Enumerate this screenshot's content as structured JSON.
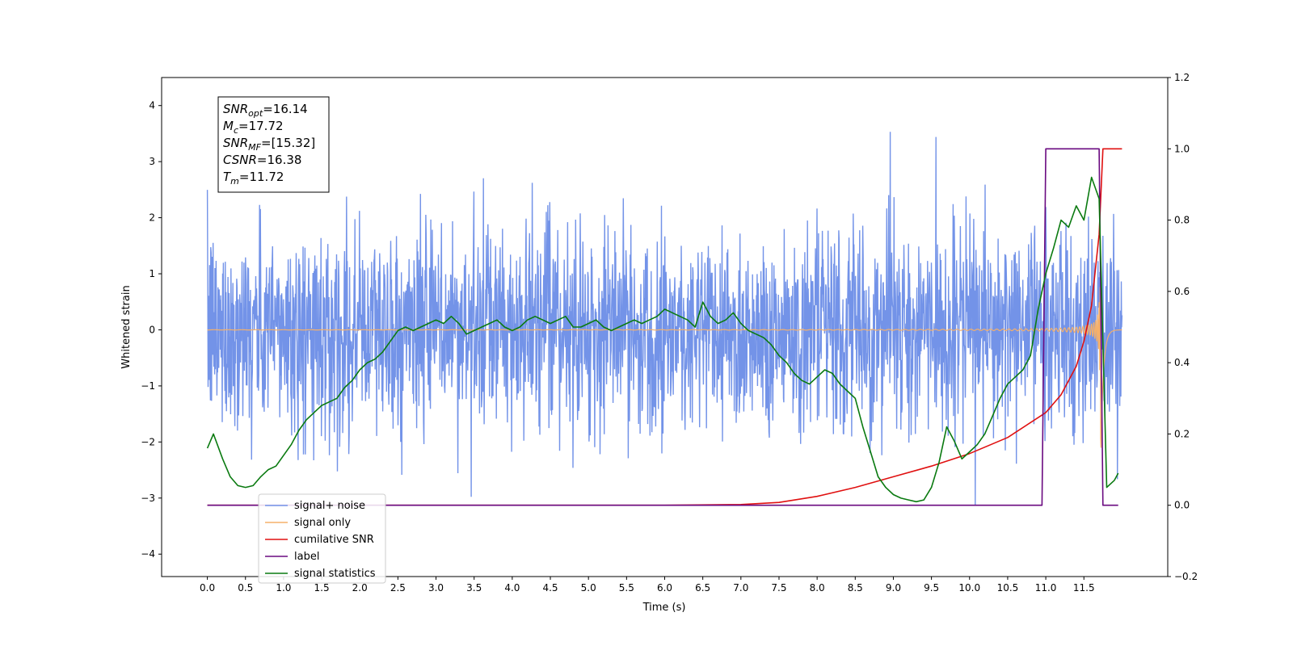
{
  "chart_data": {
    "type": "line",
    "xlabel": "Time (s)",
    "ylabel": "Whitened strain",
    "xlim": [
      -0.6,
      12.6
    ],
    "ylim": [
      -4.4,
      4.5
    ],
    "ylim_right": [
      -0.2,
      1.2
    ],
    "x_ticks": [
      "0.0",
      "0.5",
      "1.0",
      "1.5",
      "2.0",
      "2.5",
      "3.0",
      "3.5",
      "4.0",
      "4.5",
      "5.0",
      "5.5",
      "6.0",
      "6.5",
      "7.0",
      "7.5",
      "8.0",
      "8.5",
      "9.0",
      "9.5",
      "10.0",
      "10.5",
      "11.0",
      "11.5"
    ],
    "y_ticks": [
      "−4",
      "−3",
      "−2",
      "−1",
      "0",
      "1",
      "2",
      "3",
      "4"
    ],
    "y_ticks_right": [
      "−0.2",
      "0.0",
      "0.2",
      "0.4",
      "0.6",
      "0.8",
      "1.0",
      "1.2"
    ],
    "grid": false,
    "legend_position": "lower-left",
    "annotation": {
      "lines": [
        {
          "main": "SNR",
          "sub": "opt",
          "value": "=16.14"
        },
        {
          "main": "M",
          "sub": "c",
          "value": "=17.72"
        },
        {
          "main": "SNR",
          "sub": "MF",
          "value": "=[15.32]"
        },
        {
          "main": "CSNR",
          "sub": "",
          "value": "=16.38"
        },
        {
          "main": "T",
          "sub": "m",
          "value": "=11.72"
        }
      ]
    },
    "series": [
      {
        "name": "signal+ noise",
        "color": "#7393e8",
        "axis": "left",
        "t_start": 0.0,
        "t_end": 12.0,
        "sigma": 0.9,
        "envelope_peak": 2.4,
        "merger_time": 11.72
      },
      {
        "name": "signal only",
        "color": "#f5b06a",
        "axis": "left",
        "t_start": 0.0,
        "t_end": 12.0,
        "envelope_peak": 2.4,
        "merger_time": 11.72
      },
      {
        "name": "cumilative SNR",
        "color": "#e01010",
        "axis": "right",
        "x": [
          0.0,
          6.0,
          7.0,
          7.5,
          8.0,
          8.5,
          9.0,
          9.5,
          10.0,
          10.5,
          11.0,
          11.2,
          11.4,
          11.5,
          11.6,
          11.7,
          11.75,
          11.8,
          12.0
        ],
        "y": [
          0.0,
          0.0,
          0.002,
          0.008,
          0.025,
          0.05,
          0.08,
          0.11,
          0.145,
          0.19,
          0.26,
          0.31,
          0.39,
          0.46,
          0.56,
          0.76,
          1.0,
          1.0,
          1.0
        ]
      },
      {
        "name": "label",
        "color": "#6a0a80",
        "axis": "right",
        "x": [
          0.0,
          10.95,
          11.0,
          11.7,
          11.75,
          11.95
        ],
        "y": [
          0.0,
          0.0,
          1.0,
          1.0,
          0.0,
          0.0
        ]
      },
      {
        "name": "signal statistics",
        "color": "#0a7a10",
        "axis": "right",
        "x": [
          0.0,
          0.08,
          0.2,
          0.3,
          0.4,
          0.5,
          0.6,
          0.7,
          0.8,
          0.9,
          1.0,
          1.1,
          1.2,
          1.3,
          1.4,
          1.5,
          1.6,
          1.7,
          1.8,
          1.9,
          2.0,
          2.1,
          2.2,
          2.3,
          2.4,
          2.5,
          2.6,
          2.7,
          2.8,
          2.9,
          3.0,
          3.1,
          3.2,
          3.3,
          3.4,
          3.5,
          3.6,
          3.7,
          3.8,
          3.9,
          4.0,
          4.1,
          4.2,
          4.3,
          4.4,
          4.5,
          4.6,
          4.7,
          4.8,
          4.9,
          5.0,
          5.1,
          5.2,
          5.3,
          5.4,
          5.5,
          5.6,
          5.7,
          5.8,
          5.9,
          6.0,
          6.1,
          6.2,
          6.3,
          6.4,
          6.5,
          6.6,
          6.7,
          6.8,
          6.9,
          7.0,
          7.1,
          7.2,
          7.3,
          7.4,
          7.5,
          7.6,
          7.7,
          7.8,
          7.9,
          8.0,
          8.1,
          8.2,
          8.3,
          8.4,
          8.5,
          8.6,
          8.7,
          8.8,
          8.9,
          9.0,
          9.1,
          9.2,
          9.3,
          9.4,
          9.5,
          9.6,
          9.7,
          9.8,
          9.9,
          10.0,
          10.1,
          10.2,
          10.3,
          10.4,
          10.5,
          10.6,
          10.7,
          10.8,
          10.9,
          11.0,
          11.1,
          11.2,
          11.3,
          11.4,
          11.5,
          11.6,
          11.7,
          11.8,
          11.9,
          11.95
        ],
        "y": [
          0.16,
          0.2,
          0.13,
          0.08,
          0.055,
          0.05,
          0.055,
          0.08,
          0.1,
          0.11,
          0.14,
          0.17,
          0.21,
          0.24,
          0.26,
          0.28,
          0.29,
          0.3,
          0.33,
          0.35,
          0.38,
          0.4,
          0.41,
          0.43,
          0.46,
          0.49,
          0.5,
          0.49,
          0.5,
          0.51,
          0.52,
          0.51,
          0.53,
          0.51,
          0.48,
          0.49,
          0.5,
          0.51,
          0.52,
          0.5,
          0.49,
          0.5,
          0.52,
          0.53,
          0.52,
          0.51,
          0.52,
          0.53,
          0.5,
          0.5,
          0.51,
          0.52,
          0.5,
          0.49,
          0.5,
          0.51,
          0.52,
          0.51,
          0.52,
          0.53,
          0.55,
          0.54,
          0.53,
          0.52,
          0.5,
          0.57,
          0.53,
          0.51,
          0.52,
          0.54,
          0.51,
          0.49,
          0.48,
          0.47,
          0.45,
          0.42,
          0.4,
          0.37,
          0.35,
          0.34,
          0.36,
          0.38,
          0.37,
          0.34,
          0.32,
          0.3,
          0.22,
          0.15,
          0.08,
          0.05,
          0.03,
          0.02,
          0.015,
          0.01,
          0.015,
          0.05,
          0.12,
          0.22,
          0.18,
          0.13,
          0.15,
          0.17,
          0.2,
          0.25,
          0.3,
          0.34,
          0.36,
          0.38,
          0.42,
          0.55,
          0.65,
          0.72,
          0.8,
          0.78,
          0.84,
          0.8,
          0.92,
          0.86,
          0.05,
          0.07,
          0.09
        ]
      }
    ]
  }
}
